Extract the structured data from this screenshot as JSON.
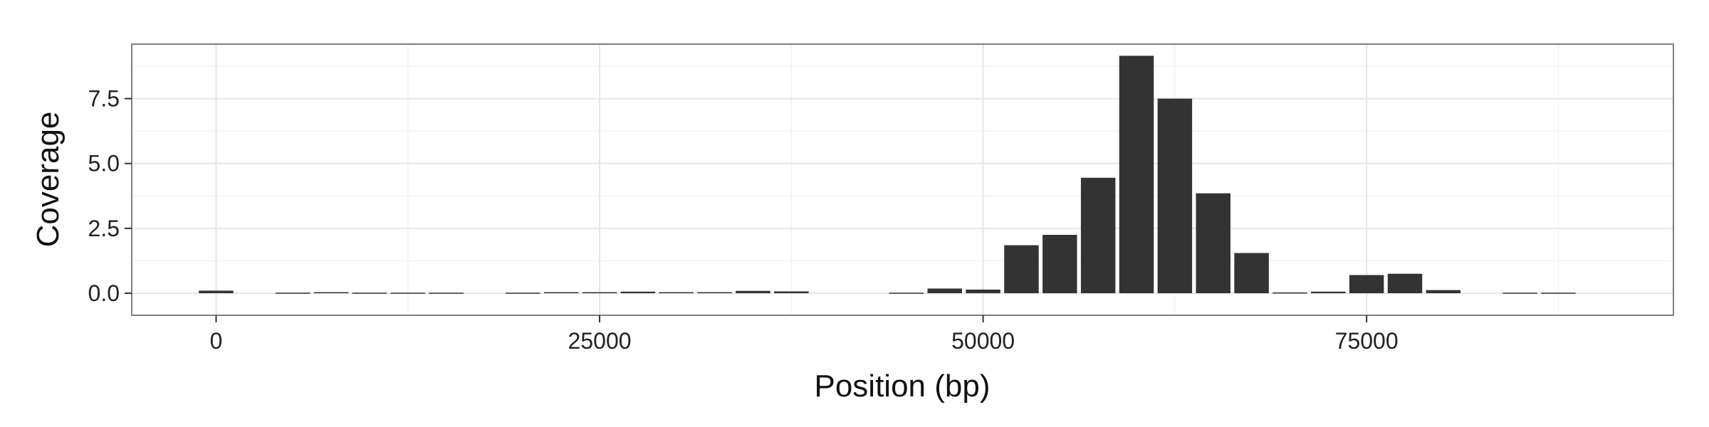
{
  "chart_data": {
    "type": "bar",
    "title": "",
    "xlabel": "Position (bp)",
    "ylabel": "Coverage",
    "xlim": [
      -5500,
      95000
    ],
    "ylim": [
      -0.85,
      9.6
    ],
    "x_ticks": [
      0,
      25000,
      50000,
      75000
    ],
    "x_tick_labels": [
      "0",
      "25000",
      "50000",
      "75000"
    ],
    "y_ticks": [
      0.0,
      2.5,
      5.0,
      7.5
    ],
    "y_tick_labels": [
      "0.0",
      "2.5",
      "5.0",
      "7.5"
    ],
    "bin_width": 2500,
    "x": [
      0,
      5000,
      7500,
      10000,
      12500,
      15000,
      20000,
      22500,
      25000,
      27500,
      30000,
      32500,
      35000,
      37500,
      45000,
      47500,
      50000,
      52500,
      55000,
      57500,
      60000,
      62500,
      65000,
      67500,
      70000,
      72500,
      75000,
      77500,
      80000,
      85000,
      87500
    ],
    "values": [
      0.1,
      0.02,
      0.04,
      0.02,
      0.02,
      0.02,
      0.02,
      0.04,
      0.04,
      0.06,
      0.04,
      0.04,
      0.09,
      0.07,
      0.02,
      0.18,
      0.14,
      1.85,
      2.25,
      4.45,
      9.15,
      7.5,
      3.85,
      1.55,
      0.03,
      0.06,
      0.7,
      0.75,
      0.12,
      0.02,
      0.02
    ],
    "grid": true,
    "legend": "none",
    "colors": {
      "bar": "#333333",
      "panel_background": "#ffffff",
      "grid_major": "#e6e6e6",
      "grid_minor": "#f3f3f3",
      "panel_border": "#7f7f7f"
    }
  }
}
